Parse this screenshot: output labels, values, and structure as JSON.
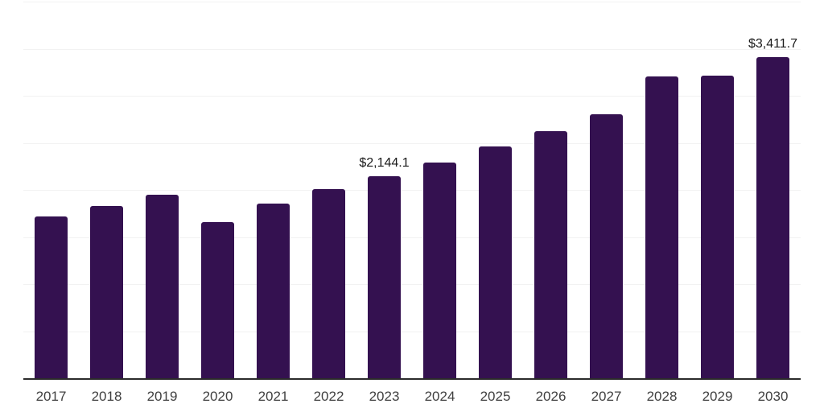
{
  "chart_data": {
    "type": "bar",
    "title": "",
    "xlabel": "",
    "ylabel": "",
    "categories": [
      "2017",
      "2018",
      "2019",
      "2020",
      "2021",
      "2022",
      "2023",
      "2024",
      "2025",
      "2026",
      "2027",
      "2028",
      "2029",
      "2030"
    ],
    "values": [
      1715,
      1825,
      1945,
      1662,
      1856,
      2009,
      2144.1,
      2290,
      2462,
      2624,
      2806,
      3201,
      3210,
      3411.7
    ],
    "data_labels": {
      "2023": "$2,144.1",
      "2030": "$3,411.7"
    },
    "ylim": [
      0,
      4000
    ],
    "gridline_step": 500,
    "grid": true,
    "legend": false,
    "colors": {
      "bar": "#341150",
      "gridline": "#f2f2f2",
      "axis": "#2b2b2b",
      "tick_label": "#404040",
      "data_label": "#1a1a1a",
      "background": "#ffffff"
    }
  }
}
